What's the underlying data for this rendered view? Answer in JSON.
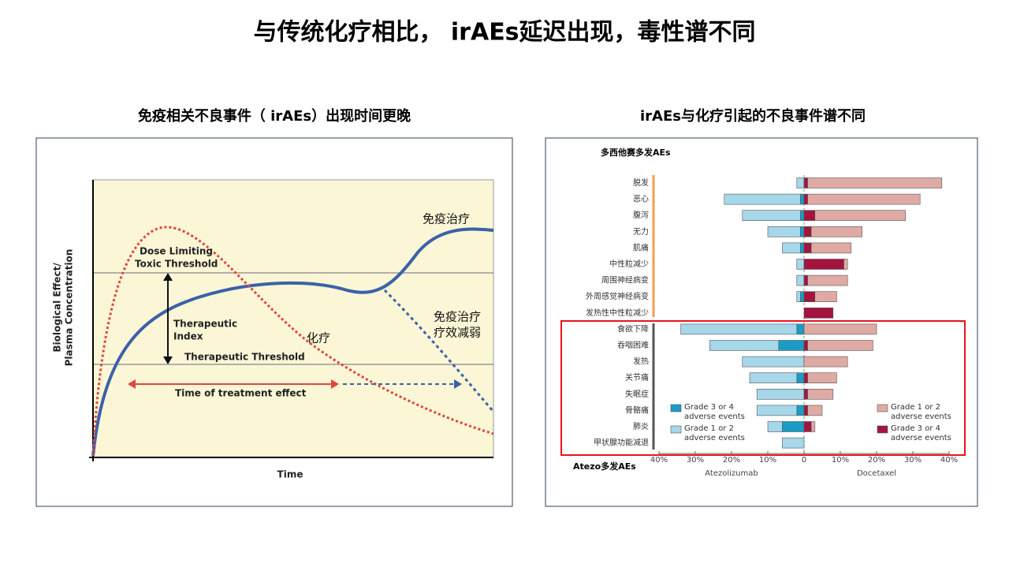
{
  "title": "与传统化疗相比， irAEs延迟出现，毒性谱不同",
  "left_panel": {
    "title": "免疫相关不良事件（ irAEs）出现时间更晚",
    "y_label_1": "Biological Effect/",
    "y_label_2": "Plasma Concentration",
    "x_label": "Time",
    "toxic_1": "Dose Limiting",
    "toxic_2": "Toxic Threshold",
    "index_1": "Therapeutic",
    "index_2": "Index",
    "threshold": "Therapeutic Threshold",
    "time_effect": "Time of treatment effect",
    "immuno": "免疫治疗",
    "immuno_weak_1": "免疫治疗",
    "immuno_weak_2": "疗效减弱",
    "chemo": "化疗"
  },
  "right_panel": {
    "title": "irAEs与化疗引起的不良事件谱不同",
    "top_note": "多西他赛多发AEs",
    "bottom_note": "Atezo多发AEs"
  },
  "chart_data": {
    "type": "butterfly",
    "categories": [
      "脱发",
      "恶心",
      "腹泻",
      "无力",
      "肌痛",
      "中性粒减少",
      "周围神经病变",
      "外周感觉神经病变",
      "发热性中性粒减少",
      "食欲下降",
      "吞咽困难",
      "发热",
      "关节痛",
      "失眠症",
      "骨骼痛",
      "肺炎",
      "甲状腺功能减退"
    ],
    "series": [
      {
        "name": "Grade 3 or 4 adverse events",
        "color": "#1b9bc6",
        "values": [
          0,
          -1,
          -1,
          -1,
          -1,
          0,
          0,
          -1,
          0,
          -2,
          -7,
          0,
          -2,
          0,
          -2,
          -6,
          0
        ]
      },
      {
        "name": "Grade 1 or 2 adverse events",
        "color": "#a6d7ea",
        "values": [
          -2,
          -21,
          -16,
          -9,
          -5,
          -2,
          -2,
          -1,
          0,
          -32,
          -19,
          -17,
          -13,
          -13,
          -11,
          -4,
          -6
        ]
      },
      {
        "name": "Grade 3 or 4 adverse events",
        "color": "#a3143f",
        "values": [
          1,
          1,
          3,
          2,
          2,
          11,
          1,
          3,
          8,
          0,
          1,
          0,
          1,
          1,
          1,
          2,
          0
        ]
      },
      {
        "name": "Grade 1 or 2 adverse events",
        "color": "#e0aaa4",
        "values": [
          37,
          31,
          25,
          14,
          11,
          1,
          11,
          6,
          0,
          20,
          18,
          12,
          8,
          7,
          4,
          1,
          0
        ]
      }
    ],
    "xlim": [
      -40,
      40
    ],
    "xticks": [
      {
        "value": -40,
        "label": "40%"
      },
      {
        "value": -30,
        "label": "30%"
      },
      {
        "value": -20,
        "label": "20%"
      },
      {
        "value": -10,
        "label": "10%"
      },
      0,
      {
        "value": 10,
        "label": "10%"
      },
      {
        "value": 20,
        "label": "20%"
      },
      {
        "value": 30,
        "label": "30%"
      },
      {
        "value": 40,
        "label": "40%"
      }
    ],
    "x_label_left": "Atezolizumab",
    "x_label_right": "Docetaxel"
  }
}
